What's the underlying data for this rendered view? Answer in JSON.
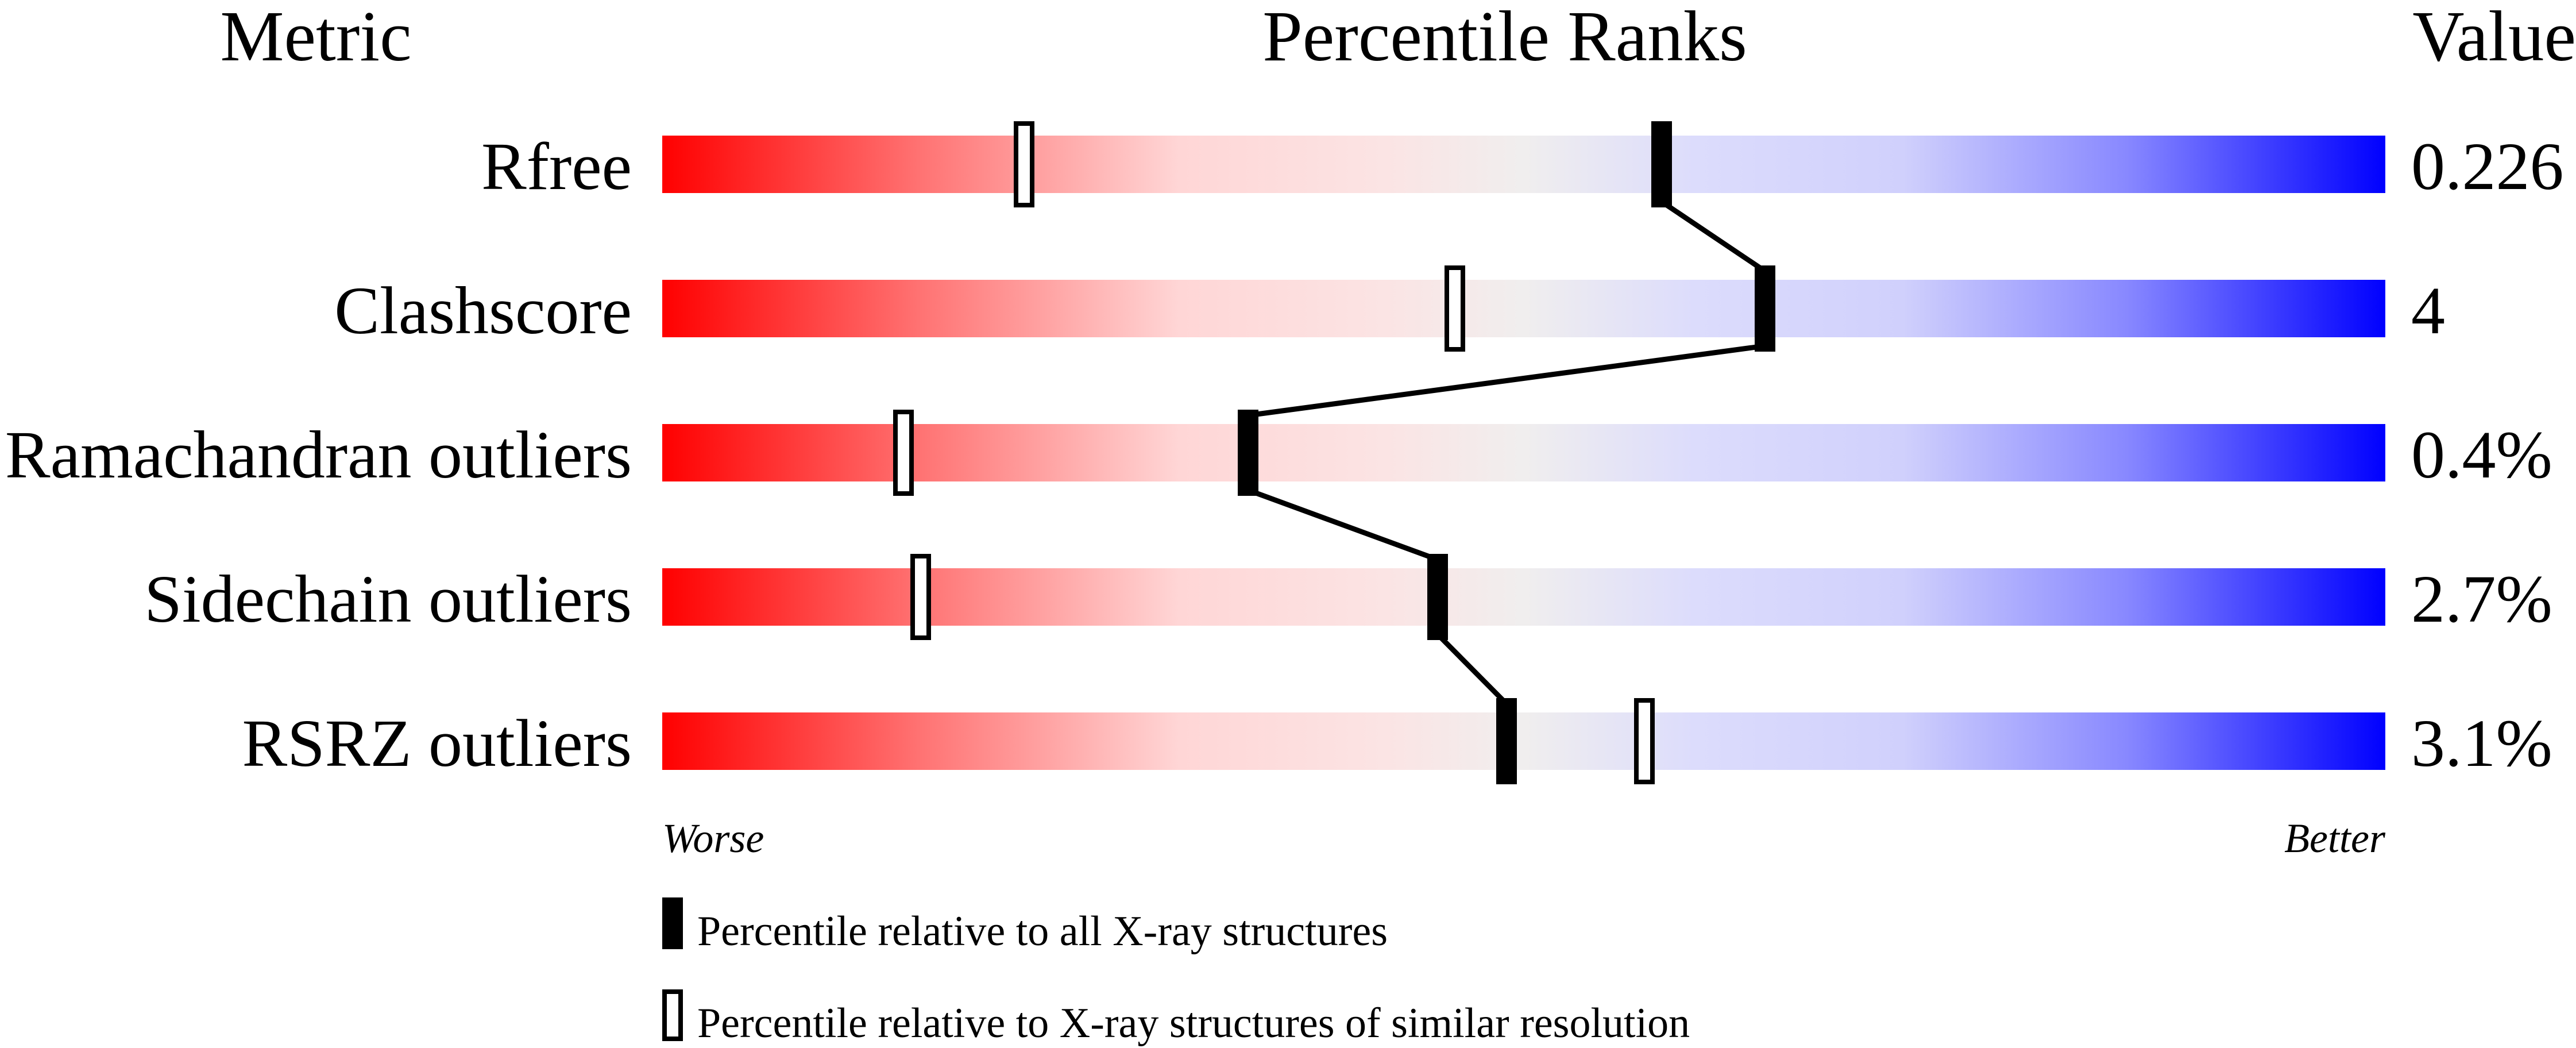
{
  "chart_data": {
    "type": "percentile-slider",
    "headers": {
      "metric": "Metric",
      "ranks": "Percentile Ranks",
      "value": "Value"
    },
    "xlim": [
      0,
      100
    ],
    "rows": [
      {
        "metric": "Rfree",
        "value": "0.226",
        "percentile_all": 58,
        "percentile_similar": 21
      },
      {
        "metric": "Clashscore",
        "value": "4",
        "percentile_all": 64,
        "percentile_similar": 46
      },
      {
        "metric": "Ramachandran outliers",
        "value": "0.4%",
        "percentile_all": 34,
        "percentile_similar": 14
      },
      {
        "metric": "Sidechain outliers",
        "value": "2.7%",
        "percentile_all": 45,
        "percentile_similar": 15
      },
      {
        "metric": "RSRZ outliers",
        "value": "3.1%",
        "percentile_all": 49,
        "percentile_similar": 57
      }
    ],
    "axis_labels": {
      "left": "Worse",
      "right": "Better"
    },
    "legend": [
      {
        "marker": "filled",
        "label": "Percentile relative to all X-ray structures"
      },
      {
        "marker": "hollow",
        "label": "Percentile relative to X-ray structures of similar resolution"
      }
    ],
    "colors": {
      "worse": "#ff0000",
      "middle": "#f0f0f0",
      "better": "#0000ff",
      "marker": "#000000"
    }
  }
}
